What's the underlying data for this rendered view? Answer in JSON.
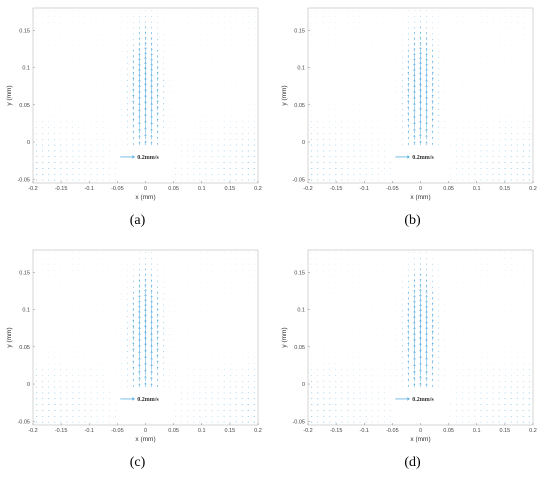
{
  "chart_data": [
    {
      "type": "quiver",
      "caption": "(a)",
      "xlabel": "x (mm)",
      "ylabel": "y (mm)",
      "xlim": [
        -0.2,
        0.2
      ],
      "ylim": [
        -0.055,
        0.18
      ],
      "xticks": [
        "-0.2",
        "-0.15",
        "-0.1",
        "-0.05",
        "0",
        "0.05",
        "0.1",
        "0.15",
        "0.2"
      ],
      "yticks": [
        "-0.05",
        "0",
        "0.05",
        "0.1",
        "0.15"
      ],
      "reference_label": "0.2mm/s",
      "vector_color": "#5aaee0"
    },
    {
      "type": "quiver",
      "caption": "(b)",
      "xlabel": "x (mm)",
      "ylabel": "y (mm)",
      "xlim": [
        -0.2,
        0.2
      ],
      "ylim": [
        -0.055,
        0.18
      ],
      "xticks": [
        "-0.2",
        "-0.15",
        "-0.1",
        "-0.05",
        "0",
        "0.05",
        "0.1",
        "0.15",
        "0.2"
      ],
      "yticks": [
        "-0.05",
        "0",
        "0.05",
        "0.1",
        "0.15"
      ],
      "reference_label": "0.2mm/s",
      "vector_color": "#5aaee0"
    },
    {
      "type": "quiver",
      "caption": "(c)",
      "xlabel": "x (mm)",
      "ylabel": "y (mm)",
      "xlim": [
        -0.2,
        0.2
      ],
      "ylim": [
        -0.055,
        0.18
      ],
      "xticks": [
        "-0.2",
        "-0.15",
        "-0.1",
        "-0.05",
        "0",
        "0.05",
        "0.1",
        "0.15",
        "0.2"
      ],
      "yticks": [
        "-0.05",
        "0",
        "0.05",
        "0.1",
        "0.15"
      ],
      "reference_label": "0.2mm/s",
      "vector_color": "#5aaee0"
    },
    {
      "type": "quiver",
      "caption": "(d)",
      "xlabel": "x (mm)",
      "ylabel": "y (mm)",
      "xlim": [
        -0.2,
        0.2
      ],
      "ylim": [
        -0.055,
        0.18
      ],
      "xticks": [
        "-0.2",
        "-0.15",
        "-0.1",
        "-0.05",
        "0",
        "0.05",
        "0.1",
        "0.15",
        "0.2"
      ],
      "yticks": [
        "-0.05",
        "0",
        "0.05",
        "0.1",
        "0.15"
      ],
      "reference_label": "0.2mm/s",
      "vector_color": "#5aaee0"
    }
  ]
}
